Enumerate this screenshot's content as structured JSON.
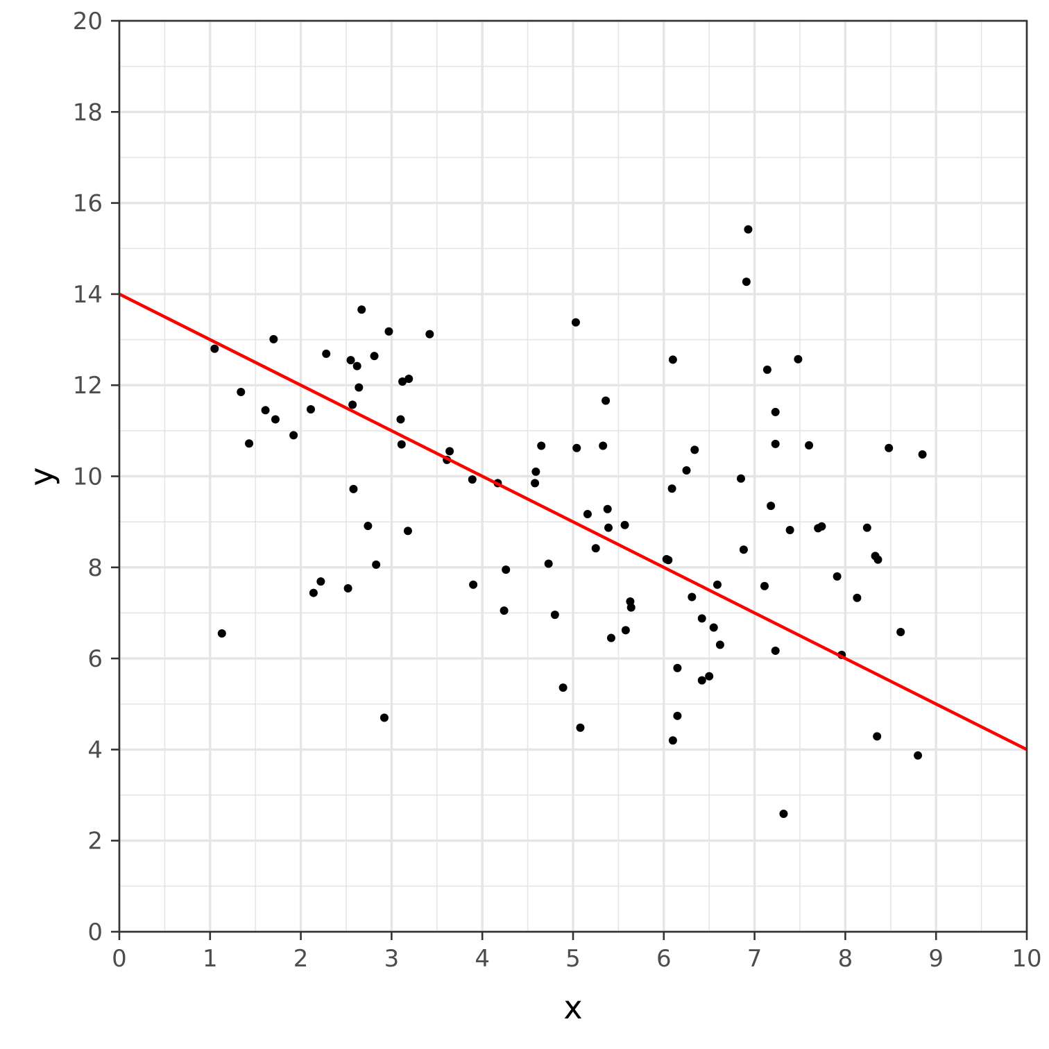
{
  "chart_data": {
    "type": "scatter",
    "title": "",
    "xlabel": "x",
    "ylabel": "y",
    "xlim": [
      0,
      10
    ],
    "ylim": [
      0,
      20
    ],
    "x_ticks": [
      0,
      1,
      2,
      3,
      4,
      5,
      6,
      7,
      8,
      9,
      10
    ],
    "y_ticks": [
      0,
      2,
      4,
      6,
      8,
      10,
      12,
      14,
      16,
      18,
      20
    ],
    "grid": true,
    "legend": "none",
    "colors": {
      "points": "#000000",
      "line": "#ff0000",
      "grid": "#e5e5e5",
      "axis": "#333333"
    },
    "series": [
      {
        "type": "scatter",
        "points": [
          [
            1.05,
            12.8
          ],
          [
            1.13,
            6.55
          ],
          [
            1.34,
            11.85
          ],
          [
            1.43,
            10.72
          ],
          [
            1.61,
            11.45
          ],
          [
            1.7,
            13.01
          ],
          [
            1.72,
            11.25
          ],
          [
            1.92,
            10.9
          ],
          [
            2.11,
            11.47
          ],
          [
            2.14,
            7.44
          ],
          [
            2.22,
            7.69
          ],
          [
            2.28,
            12.69
          ],
          [
            2.52,
            7.54
          ],
          [
            2.55,
            12.55
          ],
          [
            2.57,
            11.57
          ],
          [
            2.58,
            9.72
          ],
          [
            2.62,
            12.42
          ],
          [
            2.64,
            11.95
          ],
          [
            2.67,
            13.66
          ],
          [
            2.74,
            8.91
          ],
          [
            2.81,
            12.64
          ],
          [
            2.83,
            8.06
          ],
          [
            2.92,
            4.7
          ],
          [
            2.97,
            13.18
          ],
          [
            3.1,
            11.25
          ],
          [
            3.11,
            10.7
          ],
          [
            3.12,
            12.08
          ],
          [
            3.18,
            8.8
          ],
          [
            3.19,
            12.14
          ],
          [
            3.42,
            13.12
          ],
          [
            3.61,
            10.36
          ],
          [
            3.64,
            10.55
          ],
          [
            3.89,
            9.93
          ],
          [
            3.9,
            7.62
          ],
          [
            4.17,
            9.85
          ],
          [
            4.24,
            7.05
          ],
          [
            4.26,
            7.95
          ],
          [
            4.58,
            9.85
          ],
          [
            4.59,
            10.1
          ],
          [
            4.65,
            10.67
          ],
          [
            4.73,
            8.08
          ],
          [
            4.8,
            6.96
          ],
          [
            4.89,
            5.36
          ],
          [
            5.03,
            13.38
          ],
          [
            5.04,
            10.62
          ],
          [
            5.08,
            4.48
          ],
          [
            5.16,
            9.17
          ],
          [
            5.25,
            8.42
          ],
          [
            5.33,
            10.67
          ],
          [
            5.36,
            11.66
          ],
          [
            5.38,
            9.28
          ],
          [
            5.39,
            8.87
          ],
          [
            5.42,
            6.45
          ],
          [
            5.57,
            8.93
          ],
          [
            5.58,
            6.62
          ],
          [
            5.63,
            7.25
          ],
          [
            5.64,
            7.12
          ],
          [
            6.03,
            8.18
          ],
          [
            6.05,
            8.16
          ],
          [
            6.09,
            9.73
          ],
          [
            6.1,
            4.2
          ],
          [
            6.1,
            12.56
          ],
          [
            6.15,
            5.79
          ],
          [
            6.15,
            4.74
          ],
          [
            6.25,
            10.13
          ],
          [
            6.31,
            7.35
          ],
          [
            6.34,
            10.58
          ],
          [
            6.42,
            6.88
          ],
          [
            6.42,
            5.52
          ],
          [
            6.5,
            5.61
          ],
          [
            6.55,
            6.68
          ],
          [
            6.59,
            7.62
          ],
          [
            6.62,
            6.3
          ],
          [
            6.85,
            9.95
          ],
          [
            6.88,
            8.39
          ],
          [
            6.91,
            14.27
          ],
          [
            6.93,
            15.42
          ],
          [
            7.11,
            7.59
          ],
          [
            7.14,
            12.34
          ],
          [
            7.18,
            9.35
          ],
          [
            7.23,
            11.41
          ],
          [
            7.23,
            10.71
          ],
          [
            7.23,
            6.17
          ],
          [
            7.32,
            2.59
          ],
          [
            7.39,
            8.82
          ],
          [
            7.48,
            12.57
          ],
          [
            7.6,
            10.68
          ],
          [
            7.7,
            8.86
          ],
          [
            7.74,
            8.9
          ],
          [
            7.91,
            7.8
          ],
          [
            7.96,
            6.08
          ],
          [
            8.13,
            7.33
          ],
          [
            8.24,
            8.87
          ],
          [
            8.33,
            8.25
          ],
          [
            8.35,
            4.29
          ],
          [
            8.36,
            8.17
          ],
          [
            8.61,
            6.58
          ],
          [
            8.48,
            10.62
          ],
          [
            8.8,
            3.87
          ],
          [
            8.85,
            10.48
          ]
        ]
      },
      {
        "type": "line",
        "points": [
          [
            0,
            14
          ],
          [
            10,
            4
          ]
        ]
      }
    ]
  }
}
